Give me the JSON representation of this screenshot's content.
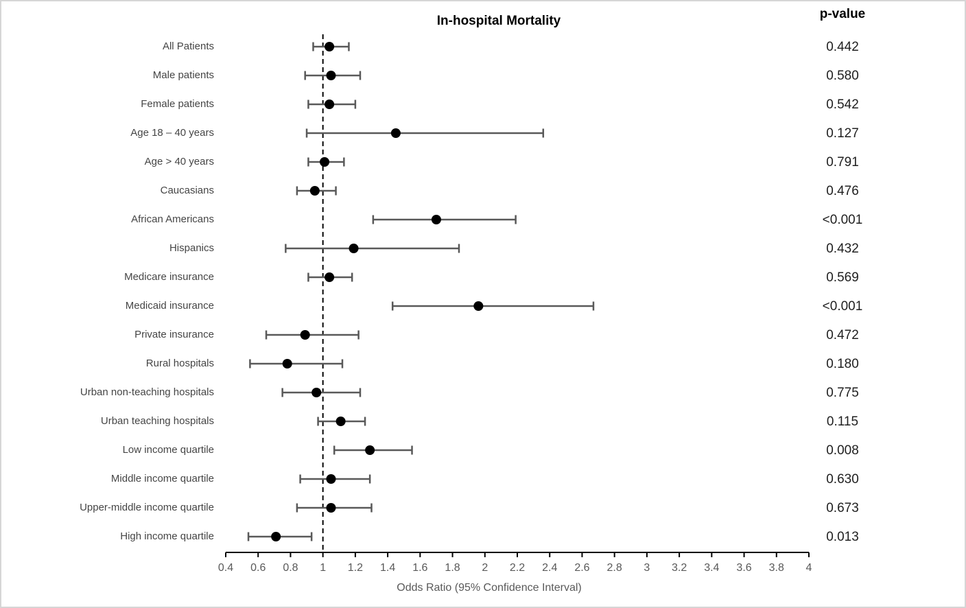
{
  "header": {
    "title": "In-hospital Mortality",
    "pvalue_label": "p-value"
  },
  "chart_data": {
    "type": "forest",
    "title": "In-hospital Mortality",
    "xlabel": "Odds Ratio (95% Confidence Interval)",
    "x_axis": {
      "min": 0.4,
      "max": 4,
      "tick_step": 0.2,
      "tick_labels": [
        "0.4",
        "0.6",
        "0.8",
        "1",
        "1.2",
        "1.4",
        "1.6",
        "1.8",
        "2",
        "2.2",
        "2.4",
        "2.6",
        "2.8",
        "3",
        "3.2",
        "3.4",
        "3.6",
        "3.8",
        "4"
      ]
    },
    "reference_line": 1,
    "legend": "none",
    "grid": false,
    "rows": [
      {
        "label": "All Patients",
        "or": 1.04,
        "ci_low": 0.94,
        "ci_high": 1.16,
        "p_value": "0.442"
      },
      {
        "label": "Male patients",
        "or": 1.05,
        "ci_low": 0.89,
        "ci_high": 1.23,
        "p_value": "0.580"
      },
      {
        "label": "Female patients",
        "or": 1.04,
        "ci_low": 0.91,
        "ci_high": 1.2,
        "p_value": "0.542"
      },
      {
        "label": "Age 18 – 40 years",
        "or": 1.45,
        "ci_low": 0.9,
        "ci_high": 2.36,
        "p_value": "0.127"
      },
      {
        "label": "Age > 40 years",
        "or": 1.01,
        "ci_low": 0.91,
        "ci_high": 1.13,
        "p_value": "0.791"
      },
      {
        "label": "Caucasians",
        "or": 0.95,
        "ci_low": 0.84,
        "ci_high": 1.08,
        "p_value": "0.476"
      },
      {
        "label": "African Americans",
        "or": 1.7,
        "ci_low": 1.31,
        "ci_high": 2.19,
        "p_value": "<0.001"
      },
      {
        "label": "Hispanics",
        "or": 1.19,
        "ci_low": 0.77,
        "ci_high": 1.84,
        "p_value": "0.432"
      },
      {
        "label": "Medicare insurance",
        "or": 1.04,
        "ci_low": 0.91,
        "ci_high": 1.18,
        "p_value": "0.569"
      },
      {
        "label": "Medicaid insurance",
        "or": 1.96,
        "ci_low": 1.43,
        "ci_high": 2.67,
        "p_value": "<0.001"
      },
      {
        "label": "Private insurance",
        "or": 0.89,
        "ci_low": 0.65,
        "ci_high": 1.22,
        "p_value": "0.472"
      },
      {
        "label": "Rural hospitals",
        "or": 0.78,
        "ci_low": 0.55,
        "ci_high": 1.12,
        "p_value": "0.180"
      },
      {
        "label": "Urban non-teaching hospitals",
        "or": 0.96,
        "ci_low": 0.75,
        "ci_high": 1.23,
        "p_value": "0.775"
      },
      {
        "label": "Urban teaching hospitals",
        "or": 1.11,
        "ci_low": 0.97,
        "ci_high": 1.26,
        "p_value": "0.115"
      },
      {
        "label": "Low income quartile",
        "or": 1.29,
        "ci_low": 1.07,
        "ci_high": 1.55,
        "p_value": "0.008"
      },
      {
        "label": "Middle income quartile",
        "or": 1.05,
        "ci_low": 0.86,
        "ci_high": 1.29,
        "p_value": "0.630"
      },
      {
        "label": "Upper-middle income quartile",
        "or": 1.05,
        "ci_low": 0.84,
        "ci_high": 1.3,
        "p_value": "0.673"
      },
      {
        "label": "High income quartile",
        "or": 0.71,
        "ci_low": 0.54,
        "ci_high": 0.93,
        "p_value": "0.013"
      }
    ]
  },
  "colors": {
    "marker": "#000000",
    "whisker": "#595959",
    "axis": "#000000",
    "reference_line": "#000000",
    "label_text": "#454545",
    "tick_text": "#595959",
    "pvalue_text": "#1f1f1f"
  }
}
